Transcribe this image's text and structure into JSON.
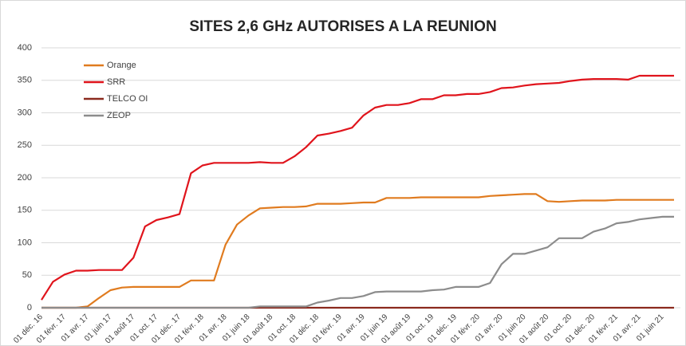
{
  "chart_data": {
    "type": "line",
    "title": "SITES 2,6 GHz AUTORISES A LA REUNION",
    "categories": [
      "01 déc. 16",
      null,
      "01 févr. 17",
      null,
      "01 avr. 17",
      null,
      "01 juin 17",
      null,
      "01 août 17",
      null,
      "01 oct. 17",
      null,
      "01 déc. 17",
      null,
      "01 févr. 18",
      null,
      "01 avr. 18",
      null,
      "01 juin 18",
      null,
      "01 août 18",
      null,
      "01 oct. 18",
      null,
      "01 déc. 18",
      null,
      "01 févr. 19",
      null,
      "01 avr. 19",
      null,
      "01 juin 19",
      null,
      "01 août 19",
      null,
      "01 oct. 19",
      null,
      "01 déc. 19",
      null,
      "01 févr. 20",
      null,
      "01 avr. 20",
      null,
      "01 juin 20",
      null,
      "01 août 20",
      null,
      "01 oct. 20",
      null,
      "01 déc. 20",
      null,
      "01 févr. 21",
      null,
      "01 avr. 21",
      null,
      "01 juin 21",
      null
    ],
    "series": [
      {
        "name": "Orange",
        "color": "#e07b1f",
        "values": [
          0,
          0,
          0,
          0,
          2,
          15,
          27,
          31,
          32,
          32,
          32,
          32,
          32,
          42,
          42,
          42,
          97,
          128,
          142,
          153,
          154,
          155,
          155,
          156,
          160,
          160,
          160,
          161,
          162,
          162,
          169,
          169,
          169,
          170,
          170,
          170,
          170,
          170,
          170,
          172,
          173,
          174,
          175,
          175,
          164,
          163,
          164,
          165,
          165,
          165,
          166,
          166,
          166,
          166,
          166,
          166
        ]
      },
      {
        "name": "SRR",
        "color": "#e0141c",
        "values": [
          12,
          40,
          51,
          57,
          57,
          58,
          58,
          58,
          77,
          125,
          135,
          139,
          144,
          207,
          219,
          223,
          223,
          223,
          223,
          224,
          223,
          223,
          233,
          247,
          265,
          268,
          272,
          277,
          296,
          308,
          312,
          312,
          315,
          321,
          321,
          327,
          327,
          329,
          329,
          332,
          338,
          339,
          342,
          344,
          345,
          346,
          349,
          351,
          352,
          352,
          352,
          351,
          357,
          357,
          357,
          357
        ]
      },
      {
        "name": "TELCO OI",
        "color": "#8b2a1e",
        "values": [
          0,
          0,
          0,
          0,
          0,
          0,
          0,
          0,
          0,
          0,
          0,
          0,
          0,
          0,
          0,
          0,
          0,
          0,
          0,
          0,
          0,
          0,
          0,
          0,
          0,
          0,
          0,
          0,
          0,
          0,
          0,
          0,
          0,
          0,
          0,
          0,
          0,
          0,
          0,
          0,
          0,
          0,
          0,
          0,
          0,
          0,
          0,
          0,
          0,
          0,
          0,
          0,
          0,
          0,
          0,
          0
        ]
      },
      {
        "name": "ZEOP",
        "color": "#8c8c8c",
        "values": [
          0,
          0,
          0,
          0,
          0,
          0,
          0,
          0,
          0,
          0,
          0,
          0,
          0,
          0,
          0,
          0,
          0,
          0,
          0,
          2,
          2,
          2,
          2,
          2,
          8,
          11,
          15,
          15,
          18,
          24,
          25,
          25,
          25,
          25,
          27,
          28,
          32,
          32,
          32,
          38,
          67,
          83,
          83,
          88,
          93,
          107,
          107,
          107,
          117,
          122,
          130,
          132,
          136,
          138,
          140,
          140
        ]
      }
    ],
    "ylim": [
      0,
      400
    ],
    "yticks": [
      0,
      50,
      100,
      150,
      200,
      250,
      300,
      350,
      400
    ],
    "grid": true,
    "legend": "upper left"
  }
}
